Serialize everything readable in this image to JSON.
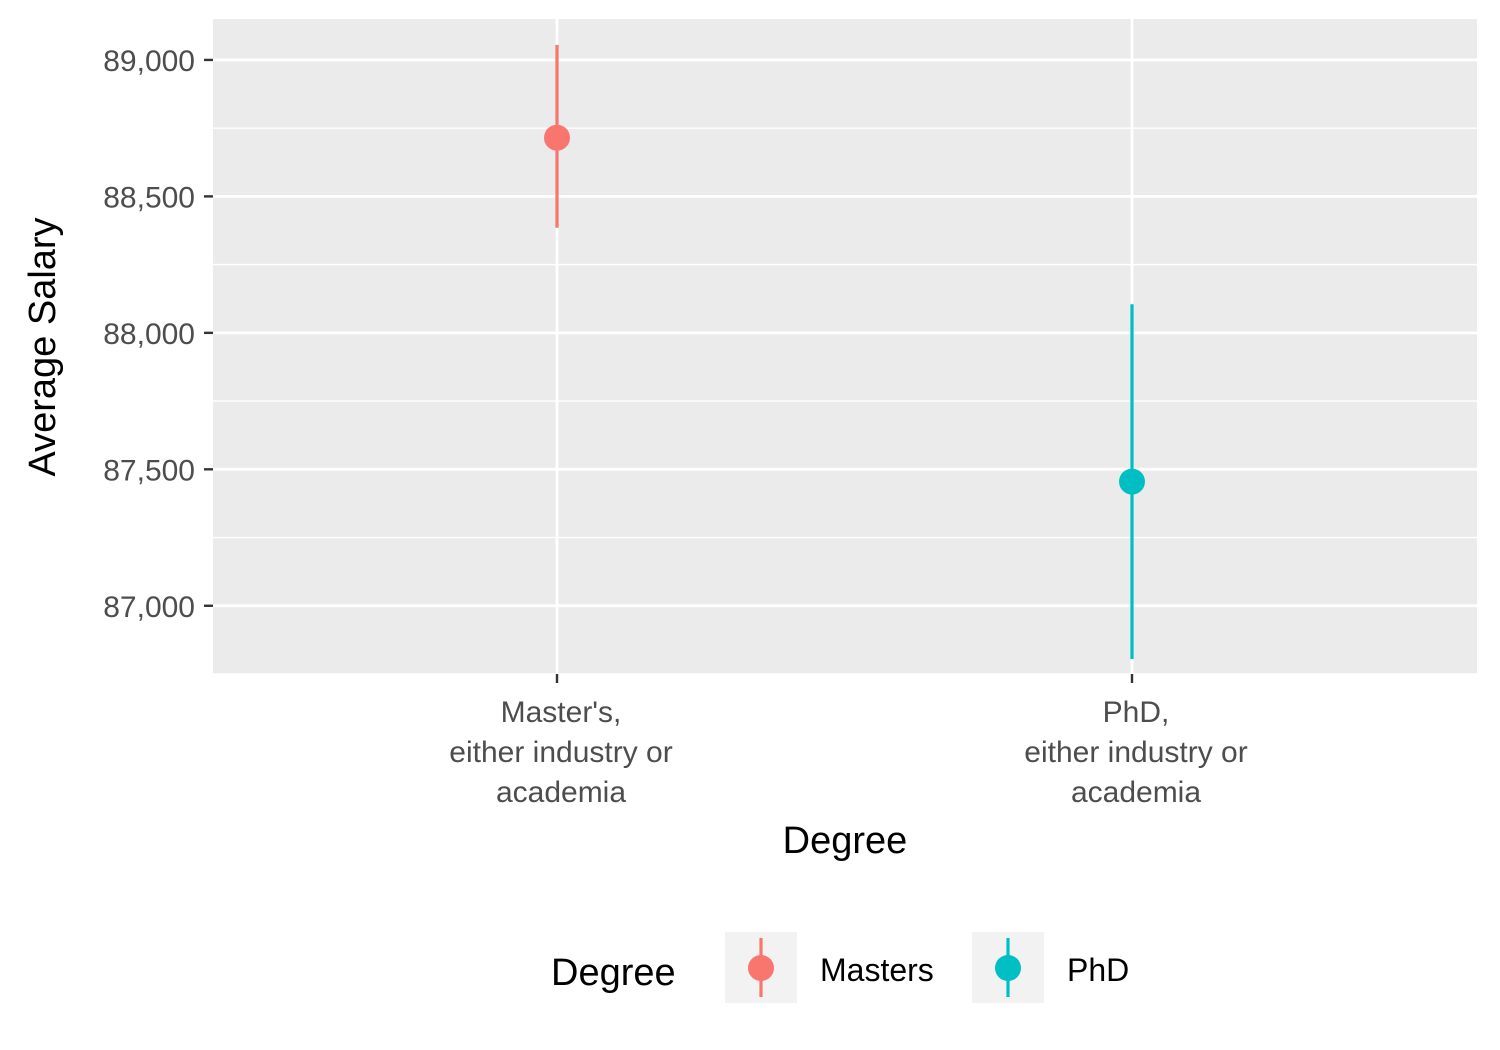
{
  "chart_data": {
    "type": "scatter",
    "subtype": "pointrange",
    "xlabel": "Degree",
    "ylabel": "Average Salary",
    "categories": [
      [
        "Master's,",
        "either industry or",
        "academia"
      ],
      [
        "PhD,",
        "either industry or",
        "academia"
      ]
    ],
    "yticks": [
      87000,
      87500,
      88000,
      88500,
      89000
    ],
    "ytick_labels": [
      "87,000",
      "87,500",
      "88,000",
      "88,500",
      "89,000"
    ],
    "ylim": [
      86750,
      89150
    ],
    "grid": true,
    "series": [
      {
        "name": "Masters",
        "category_index": 0,
        "value": 88715,
        "lower": 88385,
        "upper": 89055,
        "color": "#F8766D"
      },
      {
        "name": "PhD",
        "category_index": 1,
        "value": 87455,
        "lower": 86805,
        "upper": 88105,
        "color": "#00BFC4"
      }
    ],
    "legend": {
      "title": "Degree",
      "position": "bottom",
      "entries": [
        "Masters",
        "PhD"
      ]
    },
    "panel_background": "#EBEBEB"
  }
}
